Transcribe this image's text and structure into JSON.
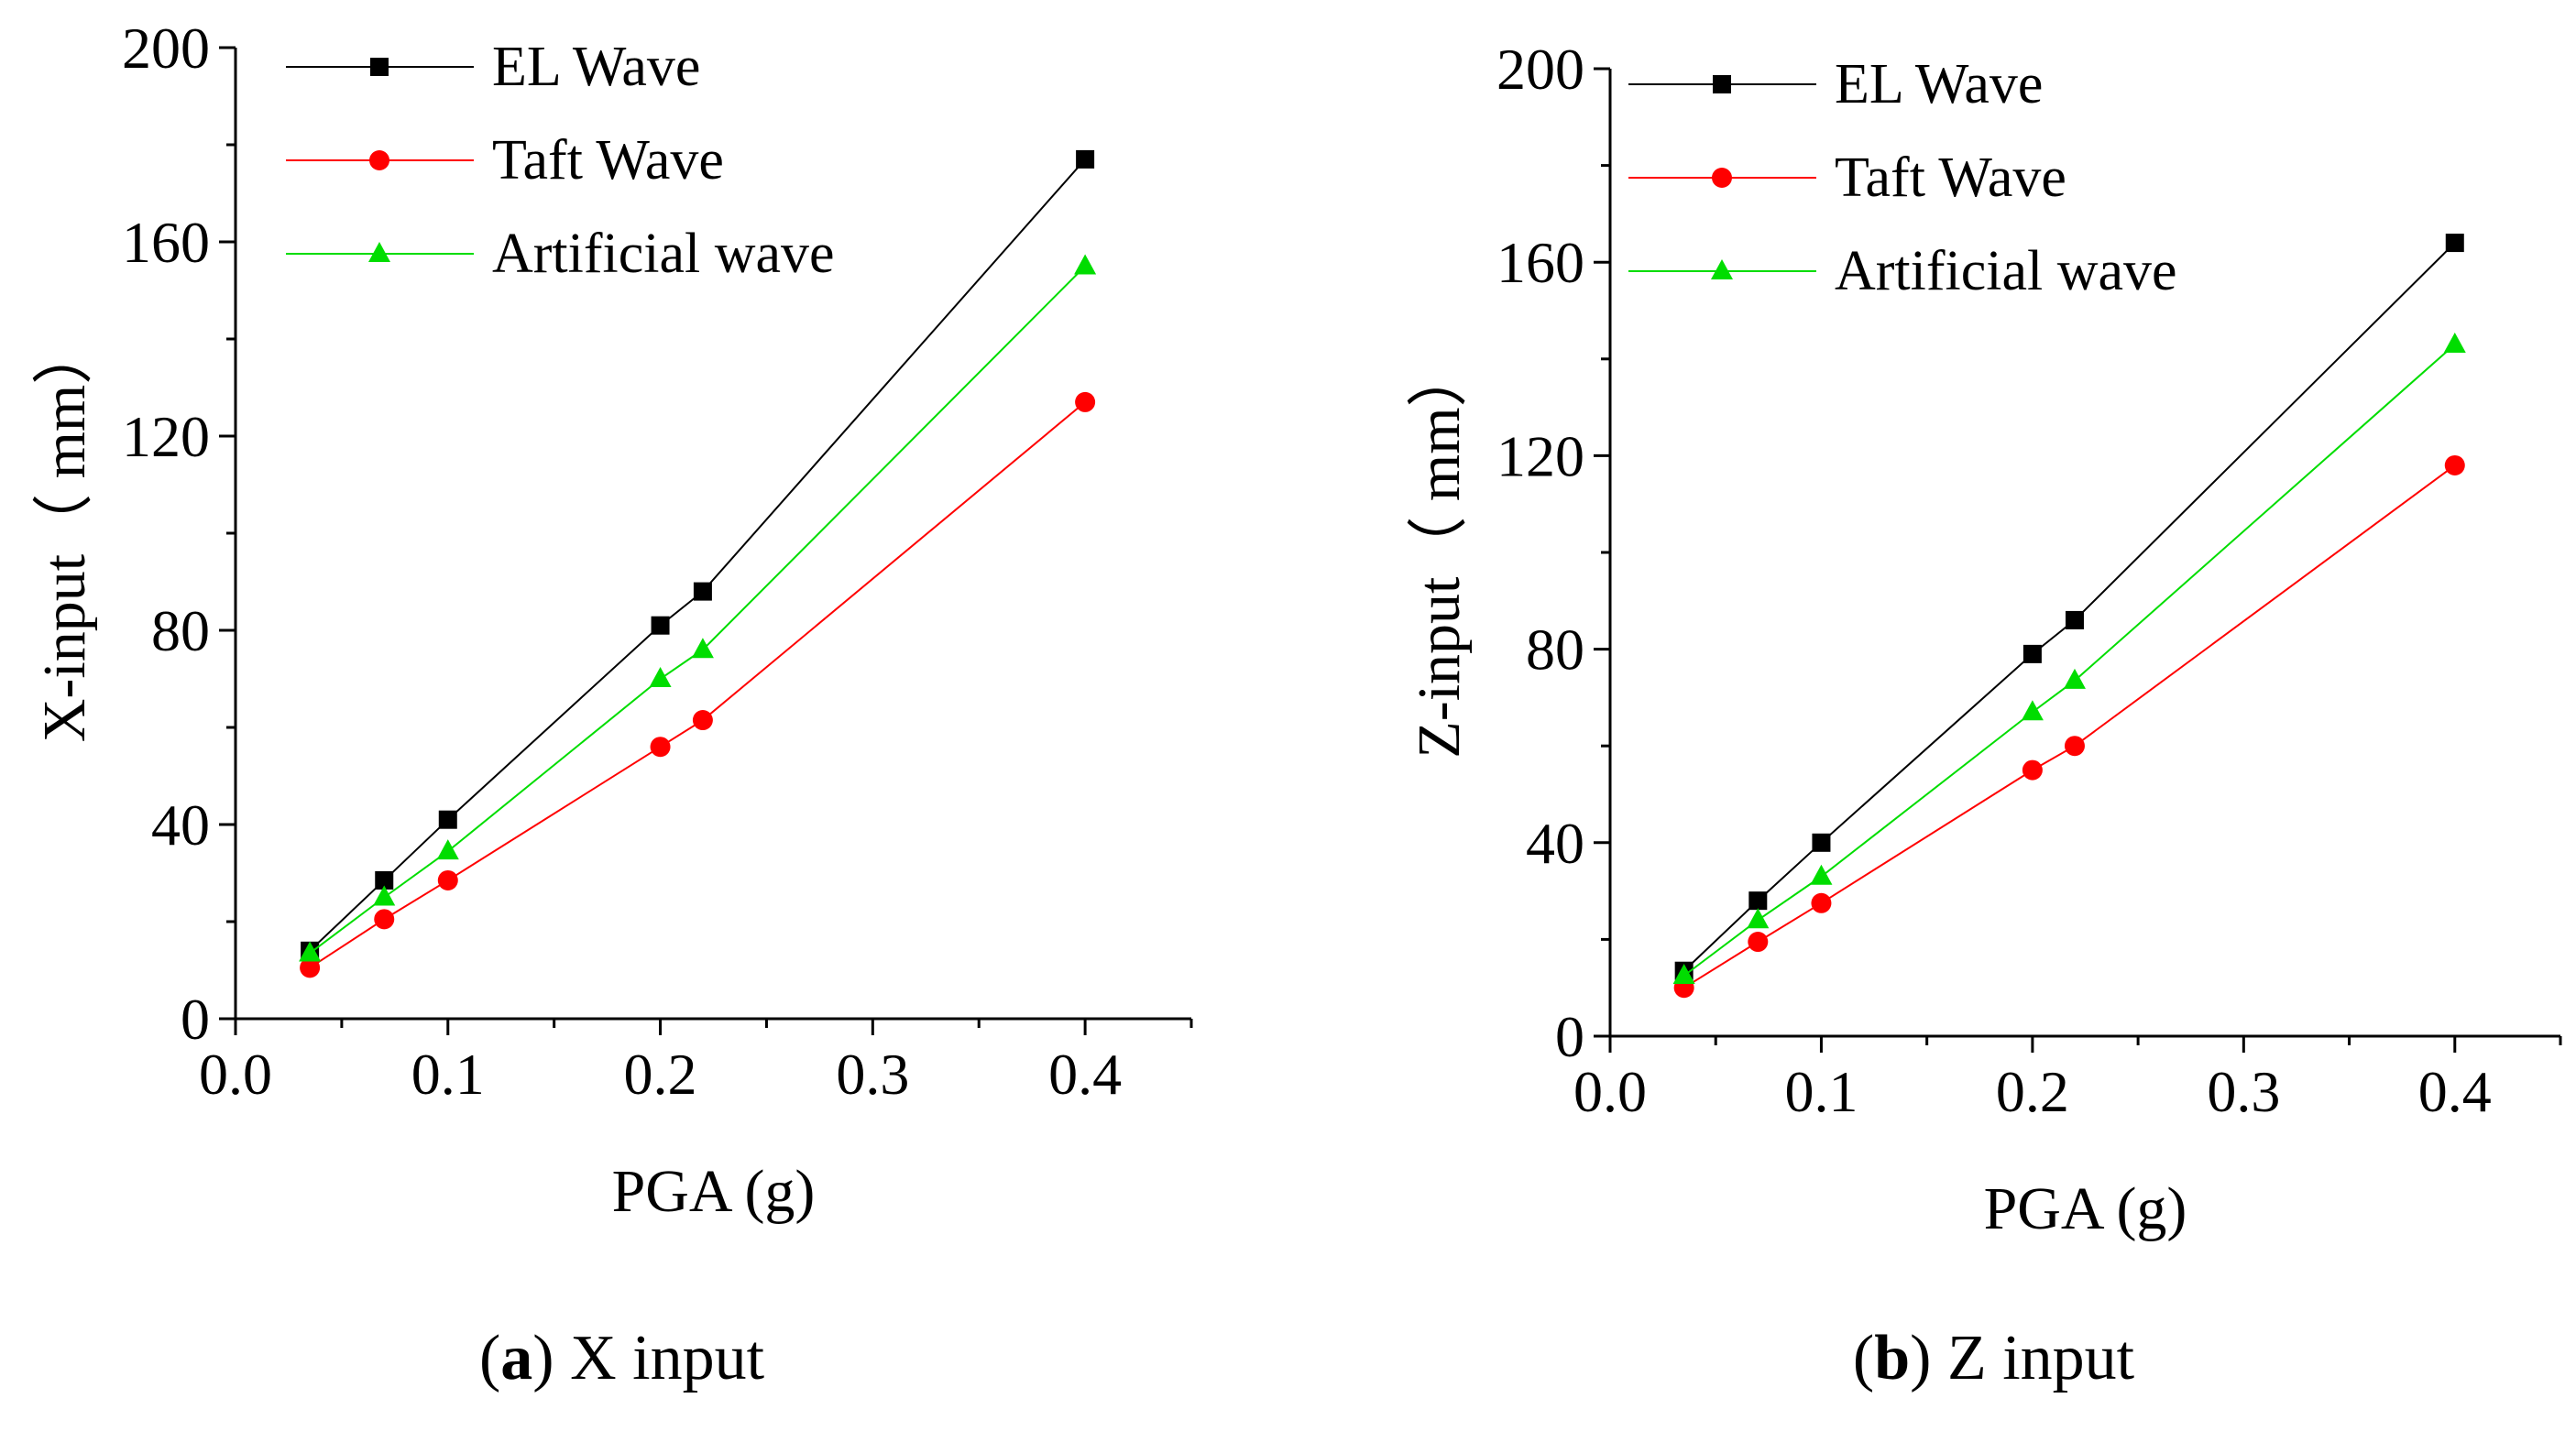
{
  "chart_data": [
    {
      "id": "a",
      "type": "line",
      "caption": {
        "letter": "a",
        "text": "X input"
      },
      "xlabel": "PGA (g)",
      "ylabel": "X-input（ mm）",
      "xlim": [
        0,
        0.45
      ],
      "ylim": [
        0,
        200
      ],
      "xticks": [
        0.0,
        0.1,
        0.2,
        0.3,
        0.4
      ],
      "xtick_labels": [
        "0.0",
        "0.1",
        "0.2",
        "0.3",
        "0.4"
      ],
      "yticks": [
        0,
        40,
        80,
        120,
        160,
        200
      ],
      "ytick_labels": [
        "0",
        "40",
        "80",
        "120",
        "160",
        "200"
      ],
      "x": [
        0.035,
        0.07,
        0.1,
        0.2,
        0.22,
        0.4
      ],
      "series": [
        {
          "name": "EL Wave",
          "color": "#000000",
          "marker": "square",
          "values": [
            14,
            28.5,
            41,
            81,
            88,
            177
          ]
        },
        {
          "name": "Taft Wave",
          "color": "#ff0000",
          "marker": "circle",
          "values": [
            10.5,
            20.5,
            28.5,
            56,
            61.5,
            127
          ]
        },
        {
          "name": "Artificial wave",
          "color": "#00dd00",
          "marker": "triangle",
          "values": [
            13.5,
            25,
            34.5,
            70,
            76,
            155
          ]
        }
      ]
    },
    {
      "id": "b",
      "type": "line",
      "caption": {
        "letter": "b",
        "text": "Z input"
      },
      "xlabel": "PGA (g)",
      "ylabel": "Z-input（ mm）",
      "xlim": [
        0,
        0.45
      ],
      "ylim": [
        0,
        200
      ],
      "xticks": [
        0.0,
        0.1,
        0.2,
        0.3,
        0.4
      ],
      "xtick_labels": [
        "0.0",
        "0.1",
        "0.2",
        "0.3",
        "0.4"
      ],
      "yticks": [
        0,
        40,
        80,
        120,
        160,
        200
      ],
      "ytick_labels": [
        "0",
        "40",
        "80",
        "120",
        "160",
        "200"
      ],
      "x": [
        0.035,
        0.07,
        0.1,
        0.2,
        0.22,
        0.4
      ],
      "series": [
        {
          "name": "EL Wave",
          "color": "#000000",
          "marker": "square",
          "values": [
            13.5,
            28,
            40,
            79,
            86,
            164
          ]
        },
        {
          "name": "Taft Wave",
          "color": "#ff0000",
          "marker": "circle",
          "values": [
            10,
            19.5,
            27.5,
            55,
            60,
            118
          ]
        },
        {
          "name": "Artificial wave",
          "color": "#00dd00",
          "marker": "triangle",
          "values": [
            12.5,
            24,
            33,
            67,
            73.5,
            143
          ]
        }
      ]
    }
  ]
}
